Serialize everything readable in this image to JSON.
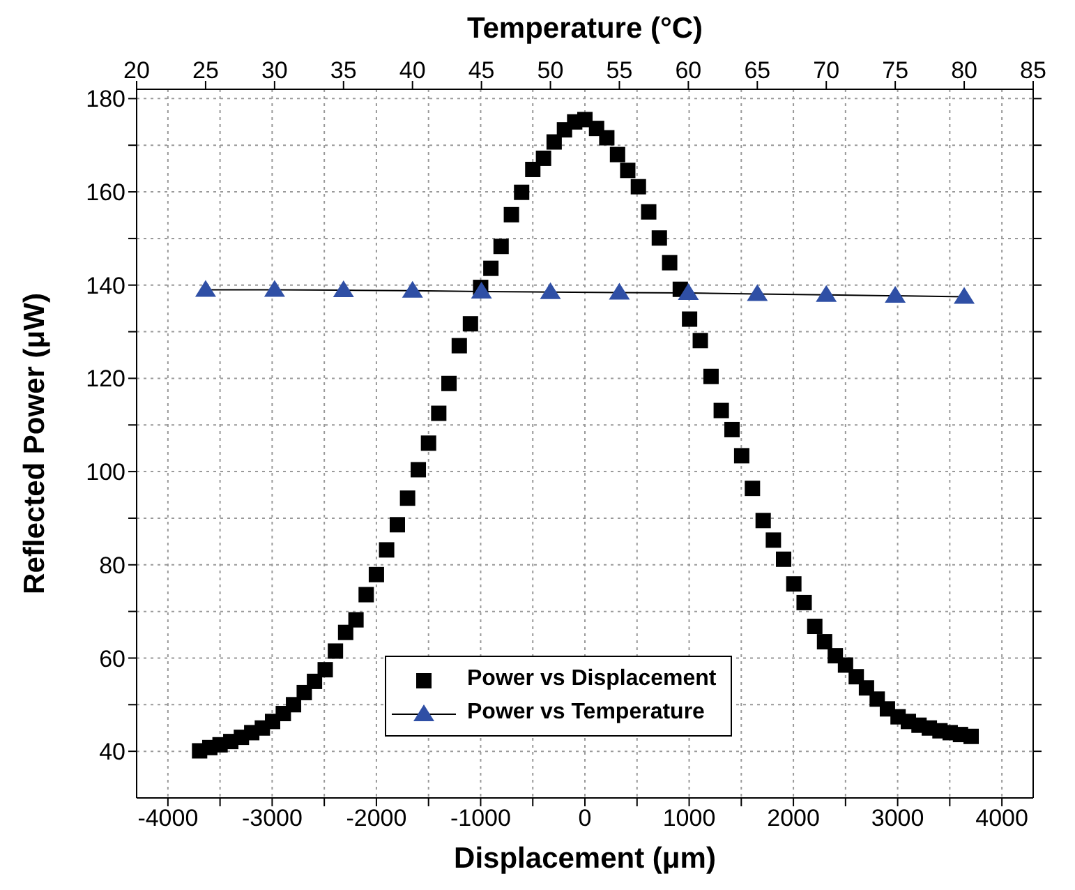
{
  "chart_data": {
    "type": "scatter",
    "xlabel": "Displacement (μm)",
    "ylabel": "Reflected Power (μW)",
    "x2label": "Temperature (°C)",
    "xlim": [
      -4300,
      4300
    ],
    "xticks": [
      -4000,
      {
        "value": -3500,
        "label": null
      },
      -3000,
      {
        "value": -2500,
        "label": null
      },
      -2000,
      {
        "value": -1500,
        "label": null
      },
      -1000,
      {
        "value": -500,
        "label": null
      },
      0,
      {
        "value": 500,
        "label": null
      },
      1000,
      {
        "value": 1500,
        "label": null
      },
      2000,
      {
        "value": 2500,
        "label": null
      },
      3000,
      {
        "value": 3500,
        "label": null
      },
      4000
    ],
    "x2lim": [
      20,
      85
    ],
    "x2ticks": [
      20,
      25,
      30,
      35,
      40,
      45,
      50,
      55,
      60,
      65,
      70,
      75,
      80,
      85
    ],
    "ylim": [
      30,
      182
    ],
    "yticks": [
      40,
      {
        "value": 50,
        "label": null
      },
      60,
      {
        "value": 70,
        "label": null
      },
      80,
      {
        "value": 90,
        "label": null
      },
      100,
      {
        "value": 110,
        "label": null
      },
      120,
      {
        "value": 130,
        "label": null
      },
      140,
      {
        "value": 150,
        "label": null
      },
      160,
      {
        "value": 170,
        "label": null
      },
      180
    ],
    "grid": true,
    "legend": "bottom",
    "series": [
      {
        "name": "Power vs Displacement",
        "marker": "square",
        "color": "#000000",
        "x": [
          -3696,
          -3598,
          -3500,
          -3397,
          -3295,
          -3196,
          -3094,
          -2996,
          -2893,
          -2795,
          -2692,
          -2594,
          -2491,
          -2393,
          -2295,
          -2196,
          -2098,
          -2000,
          -1902,
          -1799,
          -1701,
          -1598,
          -1500,
          -1402,
          -1304,
          -1205,
          -1098,
          -1000,
          -902,
          -804,
          -705,
          -607,
          -500,
          -397,
          -295,
          -196,
          -98,
          0,
          112,
          210,
          313,
          411,
          513,
          612,
          714,
          813,
          915,
          1004,
          1107,
          1210,
          1308,
          1411,
          1504,
          1607,
          1710,
          1808,
          1906,
          2004,
          2103,
          2205,
          2299,
          2402,
          2500,
          2603,
          2701,
          2804,
          2902,
          3004,
          3103,
          3205,
          3304,
          3406,
          3504,
          3603,
          3705
        ],
        "values": [
          40.1,
          40.8,
          41.4,
          42.1,
          43,
          44,
          45,
          46.4,
          48.1,
          50,
          52.6,
          55,
          57.5,
          61.5,
          65.5,
          68.2,
          73.6,
          77.9,
          83.2,
          88.6,
          94.3,
          100.4,
          106.1,
          112.5,
          118.9,
          127,
          131.7,
          139.5,
          143.6,
          148.3,
          155.1,
          159.9,
          164.8,
          167.2,
          170.7,
          173.3,
          175,
          175.5,
          173.6,
          171.6,
          168,
          164.6,
          161.1,
          155.7,
          150.1,
          144.8,
          139.1,
          132.7,
          128.1,
          120.4,
          113.1,
          109,
          103.4,
          96.4,
          89.5,
          85.3,
          81.2,
          75.9,
          71.9,
          66.8,
          63.5,
          60.5,
          58.5,
          56,
          53.6,
          51.2,
          49.1,
          47.4,
          46.4,
          45.6,
          45,
          44.4,
          44,
          43.6,
          43.2
        ]
      },
      {
        "name": "Power vs Temperature",
        "type": "line",
        "marker": "triangle",
        "axis": "x2",
        "color": "#2f4fa5",
        "x": [
          25,
          30,
          35,
          40,
          45,
          50,
          55,
          60,
          65,
          70,
          75,
          80
        ],
        "values": [
          139.0,
          139.0,
          138.9,
          138.8,
          138.6,
          138.5,
          138.4,
          138.3,
          138.1,
          137.9,
          137.7,
          137.5
        ]
      }
    ]
  }
}
